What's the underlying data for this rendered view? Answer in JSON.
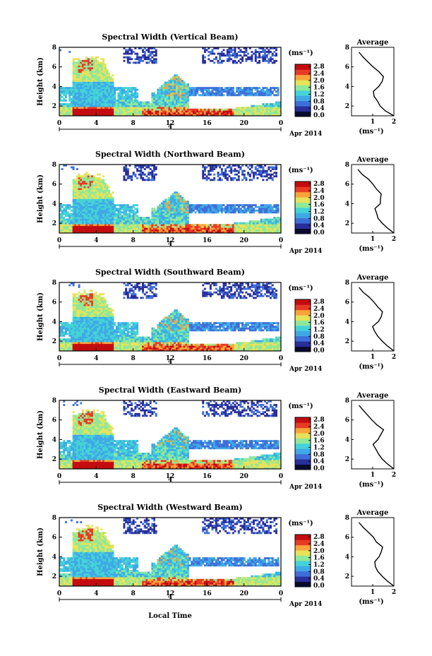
{
  "figure": {
    "x_tick_labels": [
      "0",
      "4",
      "8",
      "12",
      "16",
      "20",
      "0"
    ],
    "day_label": "4",
    "date_label": "Apr 2014",
    "xlabel": "Local Time",
    "ylabel": "Height (km)",
    "y_tick_labels": [
      "2",
      "4",
      "6",
      "8"
    ],
    "colorbar_unit": "(ms⁻¹)",
    "colorbar_tick_labels": [
      "0.0",
      "0.4",
      "0.8",
      "1.2",
      "1.6",
      "2.0",
      "2.4",
      "2.8"
    ],
    "avg_title": "Average",
    "avg_xlabel": "(ms⁻¹)",
    "avg_x_tick_labels": [
      "1",
      "2"
    ],
    "avg_y_tick_labels": [
      "2",
      "4",
      "6",
      "8"
    ],
    "colors": {
      "colormap": [
        "#0b0b30",
        "#2a2f9a",
        "#3f6fd8",
        "#3fa9e6",
        "#44d2d6",
        "#8ee89a",
        "#e6e35a",
        "#f9a43a",
        "#e83a24",
        "#c40c10"
      ],
      "background": "#ffffff"
    }
  },
  "chart_data": [
    {
      "type": "heatmap",
      "title": "Spectral Width (Vertical Beam)",
      "x_range_hours": [
        0,
        24
      ],
      "y_range_km": [
        1,
        8
      ],
      "colorbar_range": [
        0,
        2.8
      ],
      "grid": false,
      "average_profile": {
        "x_range": [
          0,
          2
        ],
        "height": [
          1.0,
          1.5,
          2.0,
          2.5,
          3.0,
          3.5,
          4.0,
          4.5,
          5.0,
          5.5,
          6.0,
          6.5,
          7.0,
          7.5
        ],
        "value": [
          2.0,
          1.6,
          1.35,
          1.2,
          1.1,
          1.05,
          1.3,
          1.45,
          1.5,
          1.25,
          1.0,
          0.8,
          0.55,
          0.35
        ]
      }
    },
    {
      "type": "heatmap",
      "title": "Spectral Width (Northward Beam)",
      "x_range_hours": [
        0,
        24
      ],
      "y_range_km": [
        1,
        8
      ],
      "colorbar_range": [
        0,
        2.8
      ],
      "grid": false,
      "average_profile": {
        "x_range": [
          0,
          2
        ],
        "height": [
          1.0,
          1.5,
          2.0,
          2.5,
          3.0,
          3.5,
          4.0,
          4.5,
          5.0,
          5.5,
          6.0,
          6.5,
          7.0,
          7.5
        ],
        "value": [
          2.0,
          1.7,
          1.45,
          1.25,
          1.15,
          1.1,
          1.3,
          1.35,
          1.45,
          1.2,
          0.95,
          0.75,
          0.5,
          0.3
        ]
      }
    },
    {
      "type": "heatmap",
      "title": "Spectral Width (Southward Beam)",
      "x_range_hours": [
        0,
        24
      ],
      "y_range_km": [
        1,
        8
      ],
      "colorbar_range": [
        0,
        2.8
      ],
      "grid": false,
      "average_profile": {
        "x_range": [
          0,
          2
        ],
        "height": [
          1.0,
          1.5,
          2.0,
          2.5,
          3.0,
          3.5,
          4.0,
          4.5,
          5.0,
          5.5,
          6.0,
          6.5,
          7.0,
          7.5
        ],
        "value": [
          2.0,
          1.7,
          1.45,
          1.25,
          1.15,
          1.05,
          1.3,
          1.35,
          1.45,
          1.2,
          1.0,
          0.8,
          0.55,
          0.35
        ]
      }
    },
    {
      "type": "heatmap",
      "title": "Spectral Width (Eastward Beam)",
      "x_range_hours": [
        0,
        24
      ],
      "y_range_km": [
        1,
        8
      ],
      "colorbar_range": [
        0,
        2.8
      ],
      "grid": false,
      "average_profile": {
        "x_range": [
          0,
          2
        ],
        "height": [
          1.0,
          1.5,
          2.0,
          2.5,
          3.0,
          3.5,
          4.0,
          4.5,
          5.0,
          5.5,
          6.0,
          6.5,
          7.0,
          7.5
        ],
        "value": [
          2.0,
          1.7,
          1.45,
          1.25,
          1.1,
          1.05,
          1.25,
          1.4,
          1.45,
          1.2,
          1.0,
          0.8,
          0.55,
          0.35
        ]
      }
    },
    {
      "type": "heatmap",
      "title": "Spectral Width (Westward Beam)",
      "x_range_hours": [
        0,
        24
      ],
      "y_range_km": [
        1,
        8
      ],
      "colorbar_range": [
        0,
        2.8
      ],
      "grid": false,
      "average_profile": {
        "x_range": [
          0,
          2
        ],
        "height": [
          1.0,
          1.5,
          2.0,
          2.5,
          3.0,
          3.5,
          4.0,
          4.5,
          5.0,
          5.5,
          6.0,
          6.5,
          7.0,
          7.5
        ],
        "value": [
          2.0,
          1.7,
          1.45,
          1.25,
          1.15,
          1.05,
          1.3,
          1.4,
          1.45,
          1.2,
          1.0,
          0.8,
          0.55,
          0.35
        ]
      }
    }
  ]
}
